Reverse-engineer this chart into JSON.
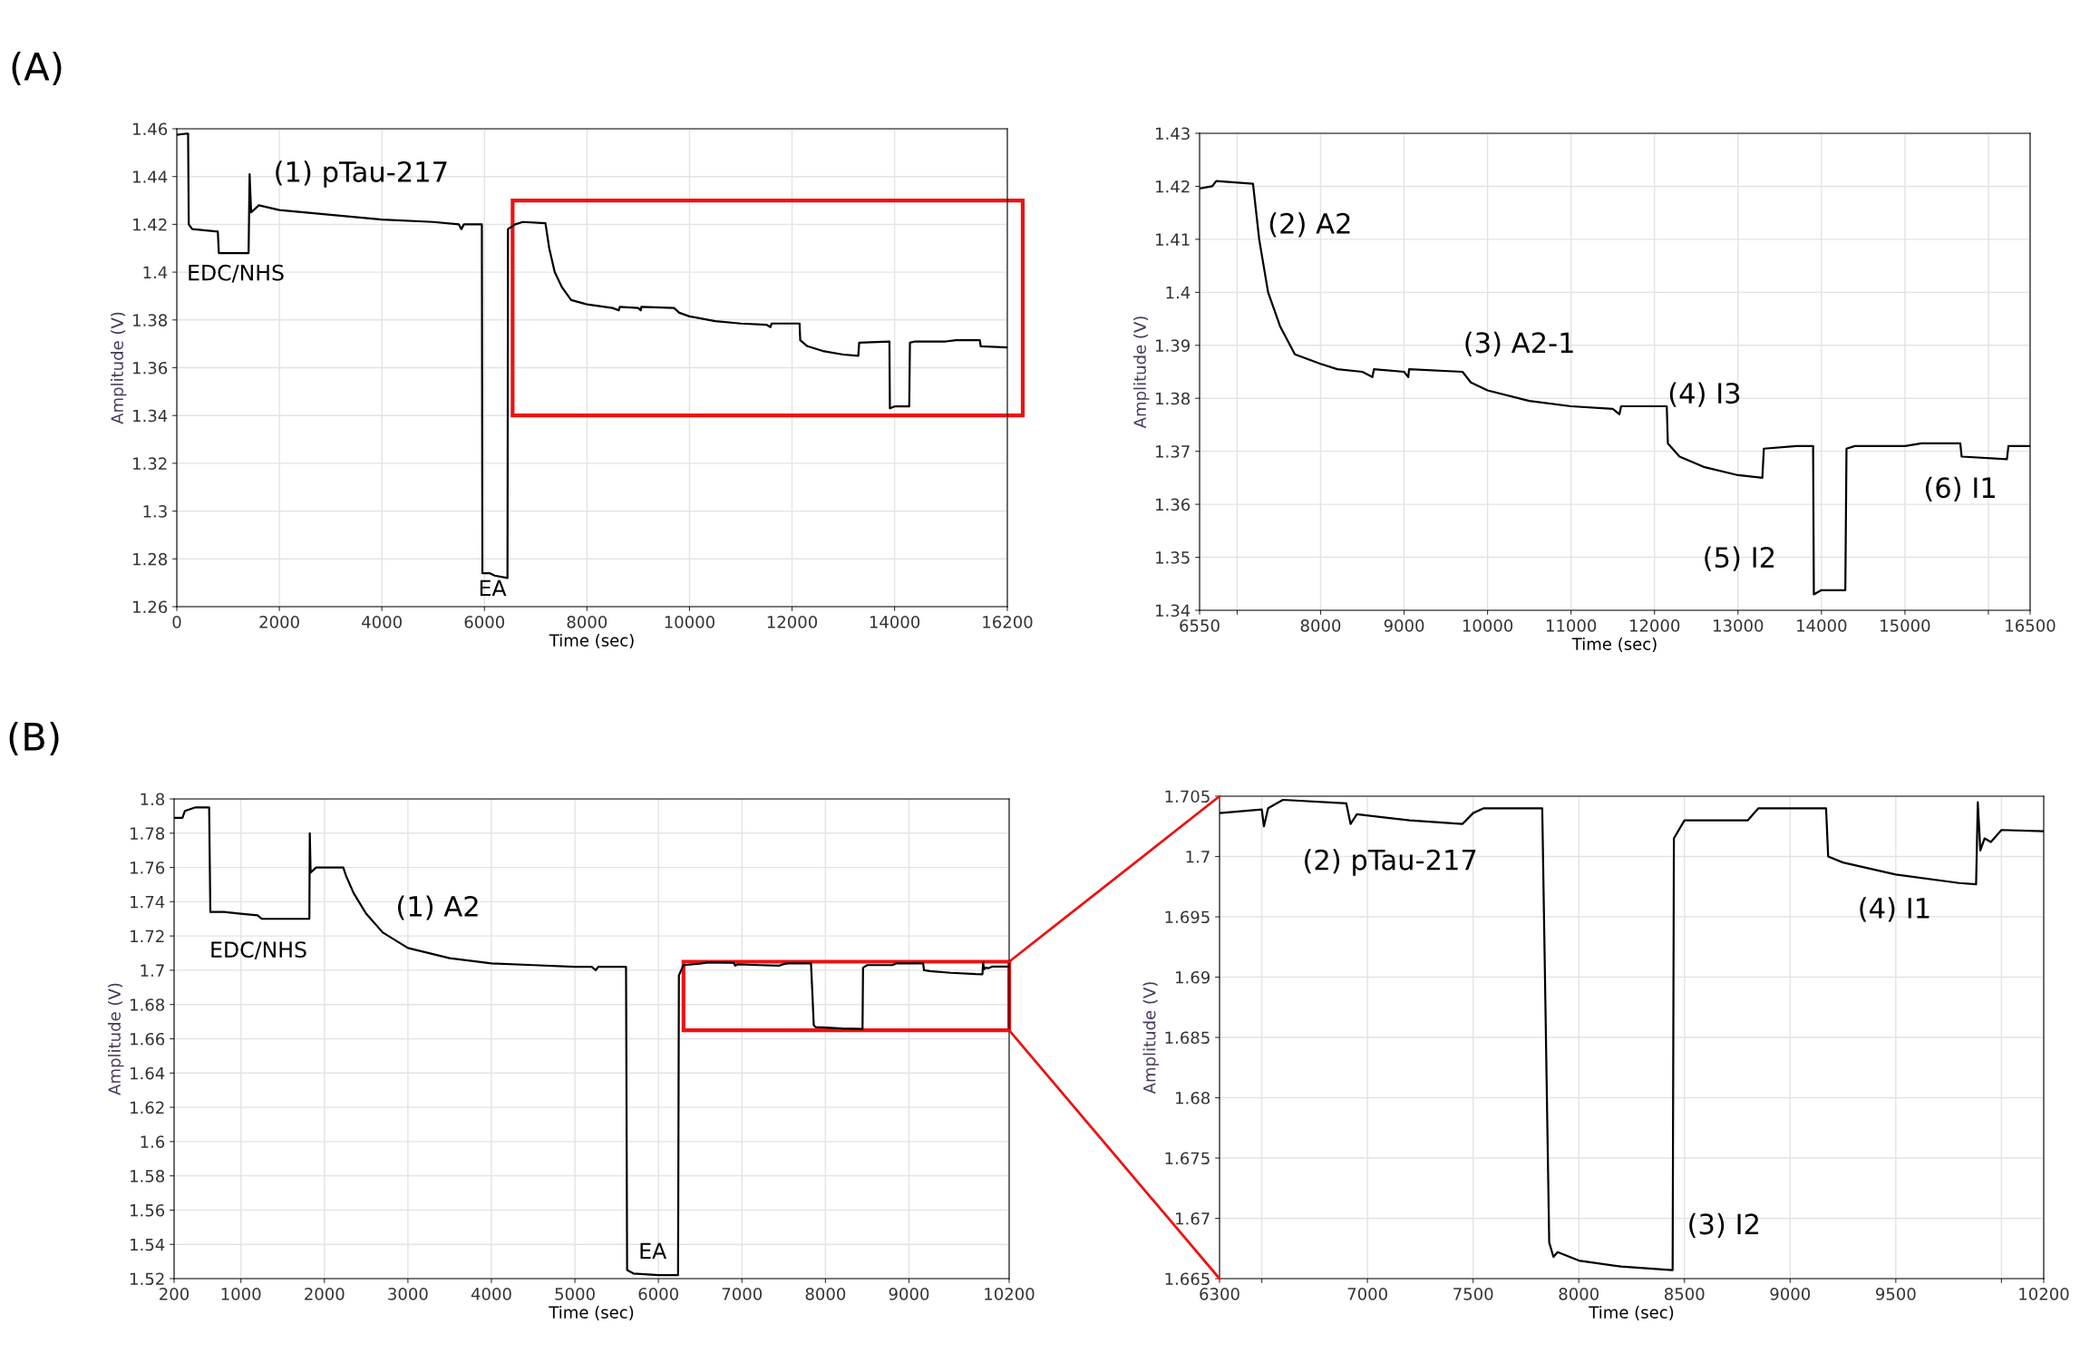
{
  "chart_data": [
    {
      "type": "line",
      "xlabel": "Time (sec)",
      "ylabel": "Amplitude (V)",
      "xlim": [
        0,
        16200
      ],
      "ylim": [
        1.26,
        1.46
      ],
      "xticks": [
        0,
        2000,
        4000,
        6000,
        8000,
        10000,
        12000,
        14000,
        16200
      ],
      "yticks": [
        1.26,
        1.28,
        1.3,
        1.32,
        1.34,
        1.36,
        1.38,
        1.4,
        1.42,
        1.44,
        1.46
      ],
      "grid": true,
      "legend": false,
      "line_style": "solid",
      "marker": "none",
      "series": [
        {
          "color": "#000000",
          "x": [
            0,
            200,
            220,
            233,
            300,
            800,
            820,
            1400,
            1420,
            1450,
            1600,
            2000,
            3000,
            4000,
            5000,
            5500,
            5550,
            5600,
            5950,
            5960,
            6100,
            6200,
            6450,
            6460,
            6600,
            6750,
            7190,
            7264,
            7371,
            7514,
            7692,
            8000,
            8500,
            8620,
            8640,
            9000,
            9050,
            9060,
            9700,
            9800,
            10000,
            10500,
            11000,
            11500,
            11580,
            11600,
            12147,
            12160,
            12300,
            12600,
            13000,
            13292,
            13310,
            13900,
            13909,
            14000,
            14286,
            14300,
            14400,
            15000,
            15200,
            15663,
            15680,
            16200
          ],
          "values": [
            1.4575,
            1.458,
            1.458,
            1.42,
            1.418,
            1.417,
            1.408,
            1.408,
            1.441,
            1.425,
            1.428,
            1.426,
            1.424,
            1.422,
            1.421,
            1.42,
            1.418,
            1.42,
            1.42,
            1.274,
            1.274,
            1.273,
            1.272,
            1.418,
            1.42,
            1.421,
            1.4205,
            1.41,
            1.4,
            1.3936,
            1.3883,
            1.3865,
            1.385,
            1.384,
            1.3855,
            1.385,
            1.384,
            1.3855,
            1.385,
            1.383,
            1.3815,
            1.3795,
            1.3785,
            1.378,
            1.377,
            1.3785,
            1.3785,
            1.3715,
            1.369,
            1.367,
            1.3655,
            1.365,
            1.3705,
            1.371,
            1.343,
            1.3438,
            1.3438,
            1.3705,
            1.371,
            1.371,
            1.3715,
            1.3715,
            1.369,
            1.3685
          ]
        }
      ],
      "annotations": [
        "(A)",
        "(1) pTau-217",
        "EDC/NHS",
        "EA"
      ]
    },
    {
      "type": "line",
      "xlabel": "Time (sec)",
      "ylabel": "Amplitude (V)",
      "xlim": [
        6550,
        16500
      ],
      "ylim": [
        1.34,
        1.43
      ],
      "xticks": [
        6550,
        {
          "value": 7000,
          "label": null
        },
        8000,
        9000,
        10000,
        11000,
        12000,
        13000,
        14000,
        15000,
        {
          "value": 16000,
          "label": null
        },
        16500
      ],
      "yticks": [
        1.34,
        1.35,
        1.36,
        1.37,
        1.38,
        1.39,
        1.4,
        1.41,
        1.42,
        1.43
      ],
      "grid": true,
      "legend": false,
      "line_style": "solid",
      "marker": "none",
      "series": [
        {
          "color": "#000000",
          "x": [
            6550,
            6700,
            6750,
            7190,
            7264,
            7371,
            7514,
            7692,
            8000,
            8200,
            8500,
            8620,
            8640,
            9000,
            9050,
            9060,
            9700,
            9800,
            10000,
            10500,
            11000,
            11500,
            11580,
            11600,
            12000,
            12147,
            12160,
            12300,
            12600,
            13000,
            13292,
            13310,
            13700,
            13900,
            13909,
            14000,
            14286,
            14300,
            14400,
            15000,
            15200,
            15663,
            15680,
            16222,
            16240,
            16500
          ],
          "values": [
            1.4196,
            1.42,
            1.421,
            1.4205,
            1.41,
            1.4,
            1.3936,
            1.3883,
            1.3865,
            1.3855,
            1.385,
            1.384,
            1.3855,
            1.385,
            1.384,
            1.3855,
            1.385,
            1.383,
            1.3815,
            1.3795,
            1.3785,
            1.378,
            1.377,
            1.3785,
            1.3785,
            1.3785,
            1.3715,
            1.369,
            1.367,
            1.3655,
            1.365,
            1.3705,
            1.371,
            1.371,
            1.343,
            1.3438,
            1.3438,
            1.3705,
            1.371,
            1.371,
            1.3715,
            1.3715,
            1.369,
            1.3685,
            1.371,
            1.371
          ]
        }
      ],
      "annotations": [
        "(2) A2",
        "(3) A2-1",
        "(4) I3",
        "(5) I2",
        "(6) I1"
      ]
    },
    {
      "type": "line",
      "xlabel": "Time (sec)",
      "ylabel": "Amplitude (V)",
      "xlim": [
        200,
        10200
      ],
      "ylim": [
        1.52,
        1.8
      ],
      "xticks": [
        200,
        1000,
        2000,
        3000,
        4000,
        5000,
        6000,
        7000,
        8000,
        9000,
        10200
      ],
      "yticks": [
        1.52,
        1.54,
        1.56,
        1.58,
        1.6,
        1.62,
        1.64,
        1.66,
        1.68,
        1.7,
        1.72,
        1.74,
        1.76,
        1.78,
        1.8
      ],
      "grid": true,
      "legend": false,
      "line_style": "solid",
      "marker": "none",
      "series": [
        {
          "color": "#000000",
          "x": [
            200,
            300,
            330,
            450,
            620,
            634,
            800,
            1000,
            1200,
            1250,
            1820,
            1825,
            1835,
            1900,
            2226,
            2260,
            2350,
            2500,
            2700,
            3000,
            3500,
            4000,
            4500,
            5000,
            5200,
            5250,
            5280,
            5612,
            5625,
            5700,
            6000,
            6235,
            6245,
            6300,
            6500,
            6600,
            6900,
            6920,
            6950,
            7200,
            7450,
            7500,
            7550,
            7827,
            7840,
            7860,
            7880,
            8000,
            8200,
            8444,
            8450,
            8500,
            8800,
            8850,
            9170,
            9180,
            9250,
            9500,
            9800,
            9880,
            9888,
            9900,
            9920,
            9950,
            10000,
            10200
          ],
          "values": [
            1.789,
            1.789,
            1.793,
            1.795,
            1.795,
            1.734,
            1.734,
            1.733,
            1.732,
            1.73,
            1.73,
            1.78,
            1.757,
            1.76,
            1.76,
            1.755,
            1.745,
            1.733,
            1.722,
            1.713,
            1.707,
            1.704,
            1.703,
            1.702,
            1.702,
            1.7,
            1.702,
            1.702,
            1.525,
            1.523,
            1.522,
            1.522,
            1.697,
            1.703,
            1.7039,
            1.7047,
            1.7044,
            1.7027,
            1.7035,
            1.703,
            1.7027,
            1.7036,
            1.704,
            1.704,
            1.69,
            1.668,
            1.6668,
            1.6665,
            1.666,
            1.6657,
            1.7015,
            1.703,
            1.703,
            1.704,
            1.704,
            1.7,
            1.6995,
            1.6985,
            1.6978,
            1.6977,
            1.7045,
            1.7005,
            1.7015,
            1.7012,
            1.7022,
            1.7021
          ]
        }
      ],
      "annotations": [
        "(B)",
        "(1) A2",
        "EDC/NHS",
        "EA"
      ]
    },
    {
      "type": "line",
      "xlabel": "Time (sec)",
      "ylabel": "Amplitude (V)",
      "xlim": [
        6300,
        10200
      ],
      "ylim": [
        1.665,
        1.705
      ],
      "xticks": [
        6300,
        {
          "value": 6500,
          "label": null
        },
        7000,
        7500,
        8000,
        8500,
        9000,
        9500,
        {
          "value": 10000,
          "label": null
        },
        10200
      ],
      "yticks": [
        1.665,
        1.67,
        1.675,
        1.68,
        1.685,
        1.69,
        1.695,
        1.7,
        1.705
      ],
      "grid": true,
      "legend": false,
      "line_style": "solid",
      "marker": "none",
      "series": [
        {
          "color": "#000000",
          "x": [
            6300,
            6500,
            6510,
            6530,
            6600,
            6900,
            6920,
            6950,
            7200,
            7450,
            7500,
            7550,
            7827,
            7840,
            7860,
            7880,
            7900,
            8000,
            8200,
            8444,
            8450,
            8500,
            8800,
            8850,
            9170,
            9180,
            9250,
            9500,
            9800,
            9880,
            9888,
            9900,
            9920,
            9950,
            10000,
            10200
          ],
          "values": [
            1.7036,
            1.7039,
            1.7025,
            1.704,
            1.7047,
            1.7044,
            1.7027,
            1.7035,
            1.703,
            1.7027,
            1.7036,
            1.704,
            1.704,
            1.69,
            1.668,
            1.6668,
            1.6672,
            1.6665,
            1.666,
            1.6657,
            1.7015,
            1.703,
            1.703,
            1.704,
            1.704,
            1.7,
            1.6995,
            1.6985,
            1.6978,
            1.6977,
            1.7045,
            1.7005,
            1.7015,
            1.7012,
            1.7022,
            1.7021
          ]
        }
      ],
      "annotations": [
        "(2) pTau-217",
        "(3) I2",
        "(4) I1"
      ]
    }
  ]
}
